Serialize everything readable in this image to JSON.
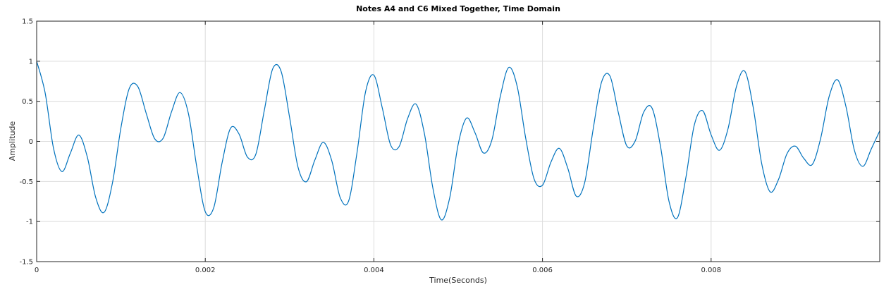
{
  "chart_data": {
    "type": "line",
    "title": "Notes A4 and C6 Mixed Together, Time Domain",
    "xlabel": "Time(Seconds)",
    "ylabel": "Amplitude",
    "xlim": [
      0,
      0.01
    ],
    "ylim": [
      -1.5,
      1.5
    ],
    "x_ticks": [
      0,
      0.002,
      0.004,
      0.006,
      0.008
    ],
    "x_tick_labels": [
      "0",
      "0.002",
      "0.004",
      "0.006",
      "0.008"
    ],
    "y_ticks": [
      -1.5,
      -1,
      -0.5,
      0,
      0.5,
      1,
      1.5
    ],
    "y_tick_labels": [
      "-1.5",
      "-1",
      "-0.5",
      "0",
      "0.5",
      "1",
      "1.5"
    ],
    "grid": true,
    "line_color": "#0072bd",
    "series": [
      {
        "x": [
          0,
          0.0001,
          0.0002,
          0.0003,
          0.0004,
          0.0005,
          0.0006,
          0.0007,
          0.0008,
          0.0009,
          0.001,
          0.0011,
          0.0012,
          0.0013,
          0.0014,
          0.0015,
          0.0016,
          0.0017,
          0.0018,
          0.0019,
          0.002,
          0.0021,
          0.0022,
          0.0023,
          0.0024,
          0.0025,
          0.0026,
          0.0027,
          0.0028,
          0.0029,
          0.003,
          0.0031,
          0.0032,
          0.0033,
          0.0034,
          0.0035,
          0.0036,
          0.0037,
          0.0038,
          0.0039,
          0.004,
          0.0041,
          0.0042,
          0.0043,
          0.0044,
          0.0045,
          0.0046,
          0.0047,
          0.0048,
          0.0049,
          0.005,
          0.0051,
          0.0052,
          0.0053,
          0.0054,
          0.0055,
          0.0056,
          0.0057,
          0.0058,
          0.0059,
          0.006,
          0.0061,
          0.0062,
          0.0063,
          0.0064,
          0.0065,
          0.0066,
          0.0067,
          0.0068,
          0.0069,
          0.007,
          0.0071,
          0.0072,
          0.0073,
          0.0074,
          0.0075,
          0.0076,
          0.0077,
          0.0078,
          0.0079,
          0.008,
          0.0081,
          0.0082,
          0.0083,
          0.0084,
          0.0085,
          0.0086,
          0.0087,
          0.0088,
          0.0089,
          0.009,
          0.0091,
          0.0092,
          0.0093,
          0.0094,
          0.0095,
          0.0096,
          0.0097,
          0.0098,
          0.0099,
          0.01
        ],
        "y": [
          1.0,
          0.609,
          -0.086,
          -0.377,
          -0.146,
          0.079,
          -0.191,
          -0.698,
          -0.885,
          -0.513,
          0.172,
          0.664,
          0.684,
          0.348,
          0.033,
          0.039,
          0.37,
          0.61,
          0.348,
          -0.324,
          -0.877,
          -0.829,
          -0.264,
          0.164,
          0.093,
          -0.196,
          -0.16,
          0.385,
          0.906,
          0.873,
          0.301,
          -0.321,
          -0.503,
          -0.232,
          -0.012,
          -0.239,
          -0.7,
          -0.745,
          -0.139,
          0.613,
          0.826,
          0.416,
          -0.049,
          -0.063,
          0.285,
          0.465,
          0.093,
          -0.584,
          -0.979,
          -0.701,
          -0.036,
          0.291,
          0.107,
          -0.145,
          0.018,
          0.564,
          0.923,
          0.685,
          0.045,
          -0.468,
          -0.547,
          -0.259,
          -0.087,
          -0.335,
          -0.683,
          -0.516,
          0.146,
          0.738,
          0.816,
          0.357,
          -0.057,
          0.006,
          0.364,
          0.414,
          -0.064,
          -0.745,
          -0.953,
          -0.456,
          0.201,
          0.383,
          0.082,
          -0.111,
          0.155,
          0.681,
          0.874,
          0.42,
          -0.277,
          -0.629,
          -0.474,
          -0.154,
          -0.06,
          -0.213,
          -0.288,
          0.04,
          0.56,
          0.768,
          0.432,
          -0.112,
          -0.311,
          -0.094,
          0.131
        ]
      }
    ]
  }
}
